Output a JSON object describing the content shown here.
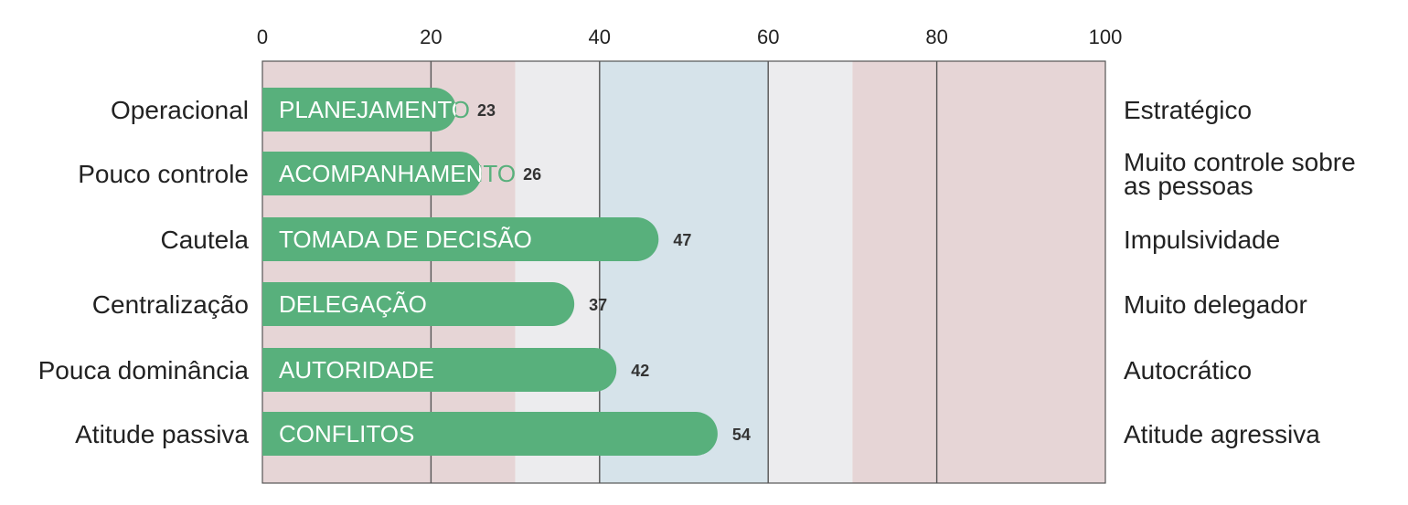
{
  "chart_data": {
    "type": "bar",
    "orientation": "horizontal",
    "xlim": [
      0,
      100
    ],
    "ticks": [
      "0",
      "20",
      "40",
      "60",
      "80",
      "100"
    ],
    "tick_values": [
      0,
      20,
      40,
      60,
      80,
      100
    ],
    "bands": [
      {
        "from": 0,
        "to": 30,
        "color": "#e6d5d6"
      },
      {
        "from": 30,
        "to": 40,
        "color": "#ececee"
      },
      {
        "from": 40,
        "to": 60,
        "color": "#d6e3ea"
      },
      {
        "from": 60,
        "to": 70,
        "color": "#ececee"
      },
      {
        "from": 70,
        "to": 100,
        "color": "#e6d5d6"
      }
    ],
    "bar_color": "#58b07c",
    "rows": [
      {
        "category": "PLANEJAMENTO",
        "value": 23,
        "left": "Operacional",
        "right": [
          "Estratégico"
        ]
      },
      {
        "category": "ACOMPANHAMENTO",
        "value": 26,
        "left": "Pouco controle",
        "right": [
          "Muito controle sobre",
          "as pessoas"
        ]
      },
      {
        "category": "TOMADA DE DECISÃO",
        "value": 47,
        "left": "Cautela",
        "right": [
          "Impulsividade"
        ]
      },
      {
        "category": "DELEGAÇÃO",
        "value": 37,
        "left": "Centralização",
        "right": [
          "Muito delegador"
        ]
      },
      {
        "category": "AUTORIDADE",
        "value": 42,
        "left": "Pouca dominância",
        "right": [
          "Autocrático"
        ]
      },
      {
        "category": "CONFLITOS",
        "value": 54,
        "left": "Atitude passiva",
        "right": [
          "Atitude agressiva"
        ]
      }
    ]
  }
}
